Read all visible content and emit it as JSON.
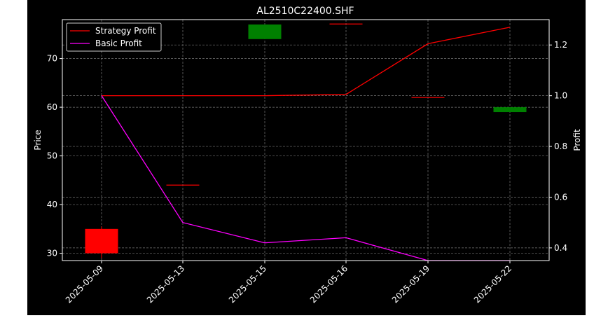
{
  "chart_data": {
    "type": "candlestick+line",
    "title": "AL2510C22400.SHF",
    "ylabel_left": "Price",
    "ylabel_right": "Profit",
    "ylim_left": [
      28.5,
      78
    ],
    "ylim_right": [
      0.35,
      1.3
    ],
    "yticks_left": [
      30,
      40,
      50,
      60,
      70
    ],
    "yticks_right": [
      0.4,
      0.6,
      0.8,
      1.0,
      1.2
    ],
    "categories": [
      "2025-05-09",
      "2025-05-13",
      "2025-05-15",
      "2025-05-16",
      "2025-05-19",
      "2025-05-22"
    ],
    "candles": [
      {
        "date": "2025-05-09",
        "open": 35.0,
        "close": 30.0,
        "high": 35.5,
        "low": 29.0,
        "color": "#ff0000"
      },
      {
        "date": "2025-05-13",
        "open": 44.0,
        "close": 44.0,
        "high": 44.0,
        "low": 44.0,
        "color": "#ff0000"
      },
      {
        "date": "2025-05-15",
        "open": 74.0,
        "close": 77.0,
        "high": 77.0,
        "low": 74.0,
        "color": "#008000"
      },
      {
        "date": "2025-05-16",
        "open": 77.1,
        "close": 77.1,
        "high": 77.1,
        "low": 77.1,
        "color": "#ff0000"
      },
      {
        "date": "2025-05-19",
        "open": 62.0,
        "close": 62.0,
        "high": 62.0,
        "low": 62.0,
        "color": "#ff0000"
      },
      {
        "date": "2025-05-22",
        "open": 59.0,
        "close": 60.0,
        "high": 60.0,
        "low": 59.0,
        "color": "#008000"
      }
    ],
    "series": [
      {
        "name": "Strategy Profit",
        "color": "#ff0000",
        "values": [
          1.0,
          1.0,
          1.0,
          1.005,
          1.205,
          1.27
        ]
      },
      {
        "name": "Basic Profit",
        "color": "#ff00ff",
        "values": [
          1.0,
          0.5,
          0.42,
          0.44,
          0.35,
          0.35
        ]
      }
    ],
    "legend": "top-left",
    "grid": true
  }
}
